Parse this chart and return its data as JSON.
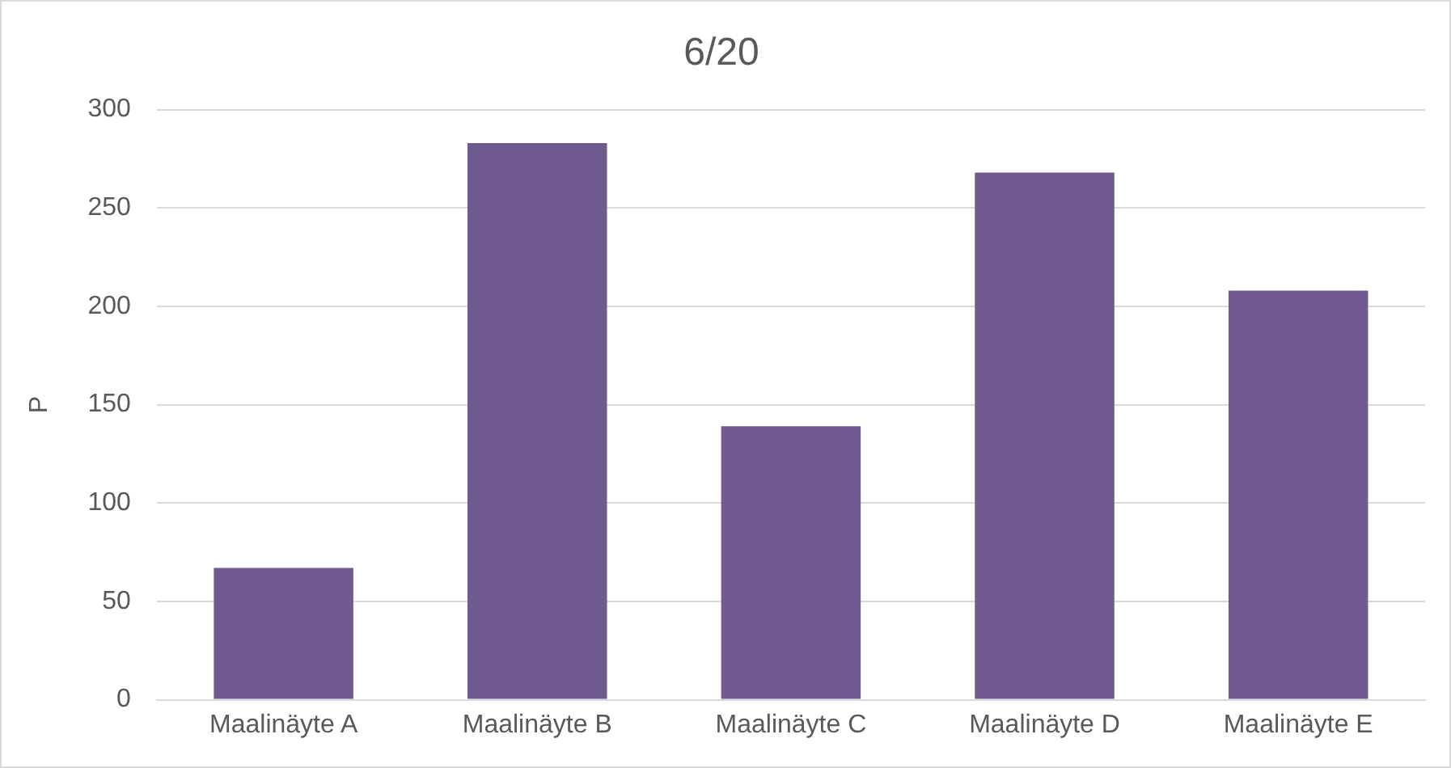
{
  "chart_data": {
    "type": "bar",
    "title": "6/20",
    "ylabel": "P",
    "categories": [
      "Maalinäyte A",
      "Maalinäyte B",
      "Maalinäyte C",
      "Maalinäyte D",
      "Maalinäyte E"
    ],
    "values": [
      67,
      283,
      139,
      268,
      208
    ],
    "color": "#705a8f",
    "ylim": [
      0,
      300
    ],
    "yticks": [
      0,
      50,
      100,
      150,
      200,
      250,
      300
    ],
    "grid": "y",
    "legend": false
  }
}
